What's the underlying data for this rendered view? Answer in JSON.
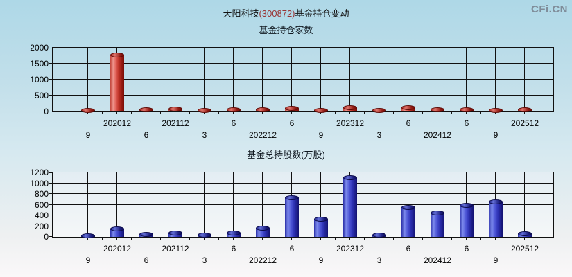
{
  "header": {
    "title_prefix": "天阳科技",
    "title_code": "(300872)",
    "title_suffix": "基金持仓变动",
    "logo_text": "CFi.CN"
  },
  "colors": {
    "page_bg_top": "#aed8e7",
    "page_bg_bottom": "#faf8f9",
    "red_bar": "#cc3328",
    "blue_bar": "#3a42c8",
    "gridline": "#111111",
    "title_code": "#993333",
    "logo": "#7f8c99",
    "plot2_bg": "#e9f1f5"
  },
  "chart_data": [
    {
      "type": "bar",
      "title": "基金持仓家数",
      "categories": [
        "9",
        "202012",
        "6",
        "202112",
        "3",
        "6",
        "202212",
        "6",
        "9",
        "202312",
        "3",
        "6",
        "202412",
        "6",
        "9",
        "202512"
      ],
      "values": [
        25,
        1750,
        40,
        55,
        20,
        45,
        45,
        90,
        15,
        110,
        15,
        105,
        45,
        45,
        15,
        35
      ],
      "yticks": [
        0,
        500,
        1000,
        1500,
        2000
      ],
      "ylim": [
        0,
        2000
      ],
      "series_color": "red",
      "grid": true,
      "legend_position": "none"
    },
    {
      "type": "bar",
      "title": "基金总持股数(万股)",
      "categories": [
        "9",
        "202012",
        "6",
        "202112",
        "3",
        "6",
        "202212",
        "6",
        "9",
        "202312",
        "3",
        "6",
        "202412",
        "6",
        "9",
        "202512"
      ],
      "values": [
        10,
        140,
        40,
        65,
        20,
        60,
        150,
        720,
        320,
        1100,
        25,
        540,
        440,
        575,
        645,
        55
      ],
      "yticks": [
        0,
        200,
        400,
        600,
        800,
        1000,
        1200
      ],
      "ylim": [
        0,
        1200
      ],
      "series_color": "blue",
      "grid": true,
      "legend_position": "none"
    }
  ]
}
